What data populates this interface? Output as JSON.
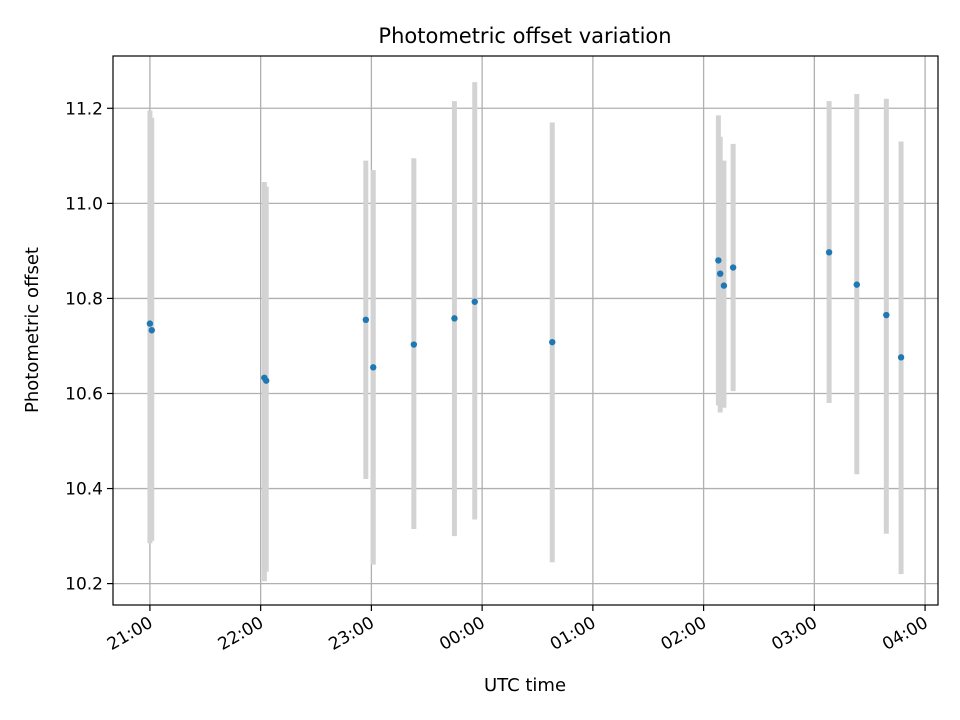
{
  "chart_data": {
    "type": "scatter",
    "title": "Photometric offset variation",
    "xlabel": "UTC time",
    "ylabel": "Photometric offset",
    "x_axis": "time",
    "xlim": [
      "20:40",
      "04:07"
    ],
    "ylim": [
      10.155,
      11.31
    ],
    "grid": true,
    "x_ticks": [
      "21:00",
      "22:00",
      "23:00",
      "00:00",
      "01:00",
      "02:00",
      "03:00",
      "04:00"
    ],
    "y_ticks": [
      "10.2",
      "10.4",
      "10.6",
      "10.8",
      "11.0",
      "11.2"
    ],
    "colors": {
      "points": "#1f77b4",
      "error_bars": "#d3d3d3",
      "grid": "#b0b0b0"
    },
    "points": [
      {
        "time": "21:00",
        "y": 10.747,
        "err_low": 10.285,
        "err_high": 11.195
      },
      {
        "time": "21:01",
        "y": 10.733,
        "err_low": 10.29,
        "err_high": 11.18
      },
      {
        "time": "22:02",
        "y": 10.633,
        "err_low": 10.205,
        "err_high": 11.045
      },
      {
        "time": "22:03",
        "y": 10.627,
        "err_low": 10.225,
        "err_high": 11.035
      },
      {
        "time": "22:57",
        "y": 10.755,
        "err_low": 10.42,
        "err_high": 11.09
      },
      {
        "time": "23:01",
        "y": 10.655,
        "err_low": 10.24,
        "err_high": 11.07
      },
      {
        "time": "23:23",
        "y": 10.703,
        "err_low": 10.315,
        "err_high": 11.095
      },
      {
        "time": "23:45",
        "y": 10.758,
        "err_low": 10.3,
        "err_high": 11.215
      },
      {
        "time": "23:56",
        "y": 10.793,
        "err_low": 10.335,
        "err_high": 11.255
      },
      {
        "time": "00:38",
        "y": 10.708,
        "err_low": 10.245,
        "err_high": 11.17
      },
      {
        "time": "02:08",
        "y": 10.88,
        "err_low": 10.575,
        "err_high": 11.185
      },
      {
        "time": "02:09",
        "y": 10.852,
        "err_low": 10.56,
        "err_high": 11.14
      },
      {
        "time": "02:11",
        "y": 10.827,
        "err_low": 10.57,
        "err_high": 11.09
      },
      {
        "time": "02:16",
        "y": 10.865,
        "err_low": 10.605,
        "err_high": 11.125
      },
      {
        "time": "03:08",
        "y": 10.897,
        "err_low": 10.58,
        "err_high": 11.215
      },
      {
        "time": "03:23",
        "y": 10.829,
        "err_low": 10.43,
        "err_high": 11.23
      },
      {
        "time": "03:39",
        "y": 10.765,
        "err_low": 10.305,
        "err_high": 11.22
      },
      {
        "time": "03:47",
        "y": 10.676,
        "err_low": 10.22,
        "err_high": 11.13
      }
    ]
  }
}
